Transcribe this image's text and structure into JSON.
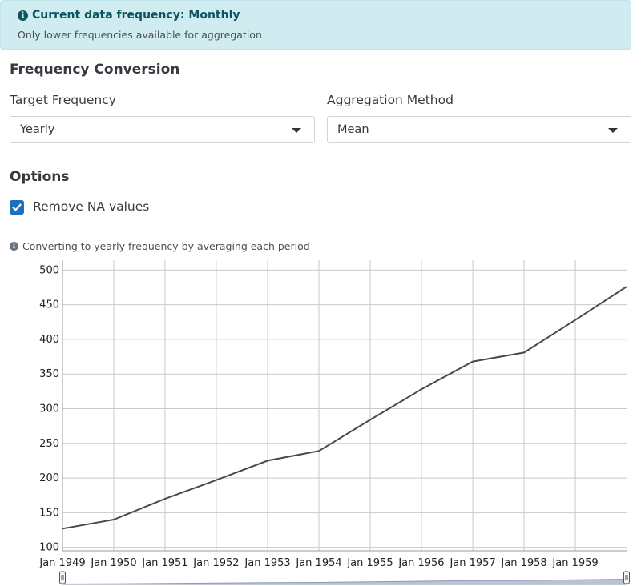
{
  "alert": {
    "title": "Current data frequency: Monthly",
    "subtitle": "Only lower frequencies available for aggregation",
    "icon": "info-icon"
  },
  "conversion": {
    "heading": "Frequency Conversion",
    "target_label": "Target Frequency",
    "target_value": "Yearly",
    "method_label": "Aggregation Method",
    "method_value": "Mean"
  },
  "options": {
    "heading": "Options",
    "remove_na_label": "Remove NA values",
    "remove_na_checked": true
  },
  "note": {
    "text": "Converting to yearly frequency by averaging each period",
    "icon": "info-icon"
  },
  "colors": {
    "alert_bg": "#d1ecf1",
    "alert_text": "#0c5460",
    "checkbox": "#1f6fbf",
    "line": "#4a4a4a"
  },
  "chart_data": {
    "type": "line",
    "x_type": "date",
    "x": [
      "1949-01-01",
      "1950-01-01",
      "1951-01-01",
      "1952-01-01",
      "1953-01-01",
      "1954-01-01",
      "1955-01-01",
      "1956-01-01",
      "1957-01-01",
      "1958-01-01",
      "1959-01-01",
      "1960-01-01"
    ],
    "series": [
      {
        "values": [
          127,
          140,
          170,
          197,
          225,
          239,
          284,
          328,
          368,
          381,
          428,
          476
        ]
      }
    ],
    "x_tick_labels": [
      "Jan 1949",
      "Jan 1950",
      "Jan 1951",
      "Jan 1952",
      "Jan 1953",
      "Jan 1954",
      "Jan 1955",
      "Jan 1956",
      "Jan 1957",
      "Jan 1958",
      "Jan 1959"
    ],
    "y_ticks": [
      100,
      150,
      200,
      250,
      300,
      350,
      400,
      450,
      500
    ],
    "ylim": [
      95,
      505
    ],
    "xlim": [
      "1949-01-01",
      "1960-01-01"
    ],
    "grid": true,
    "title": "",
    "xlabel": "",
    "ylabel": "",
    "range_selector": true
  }
}
